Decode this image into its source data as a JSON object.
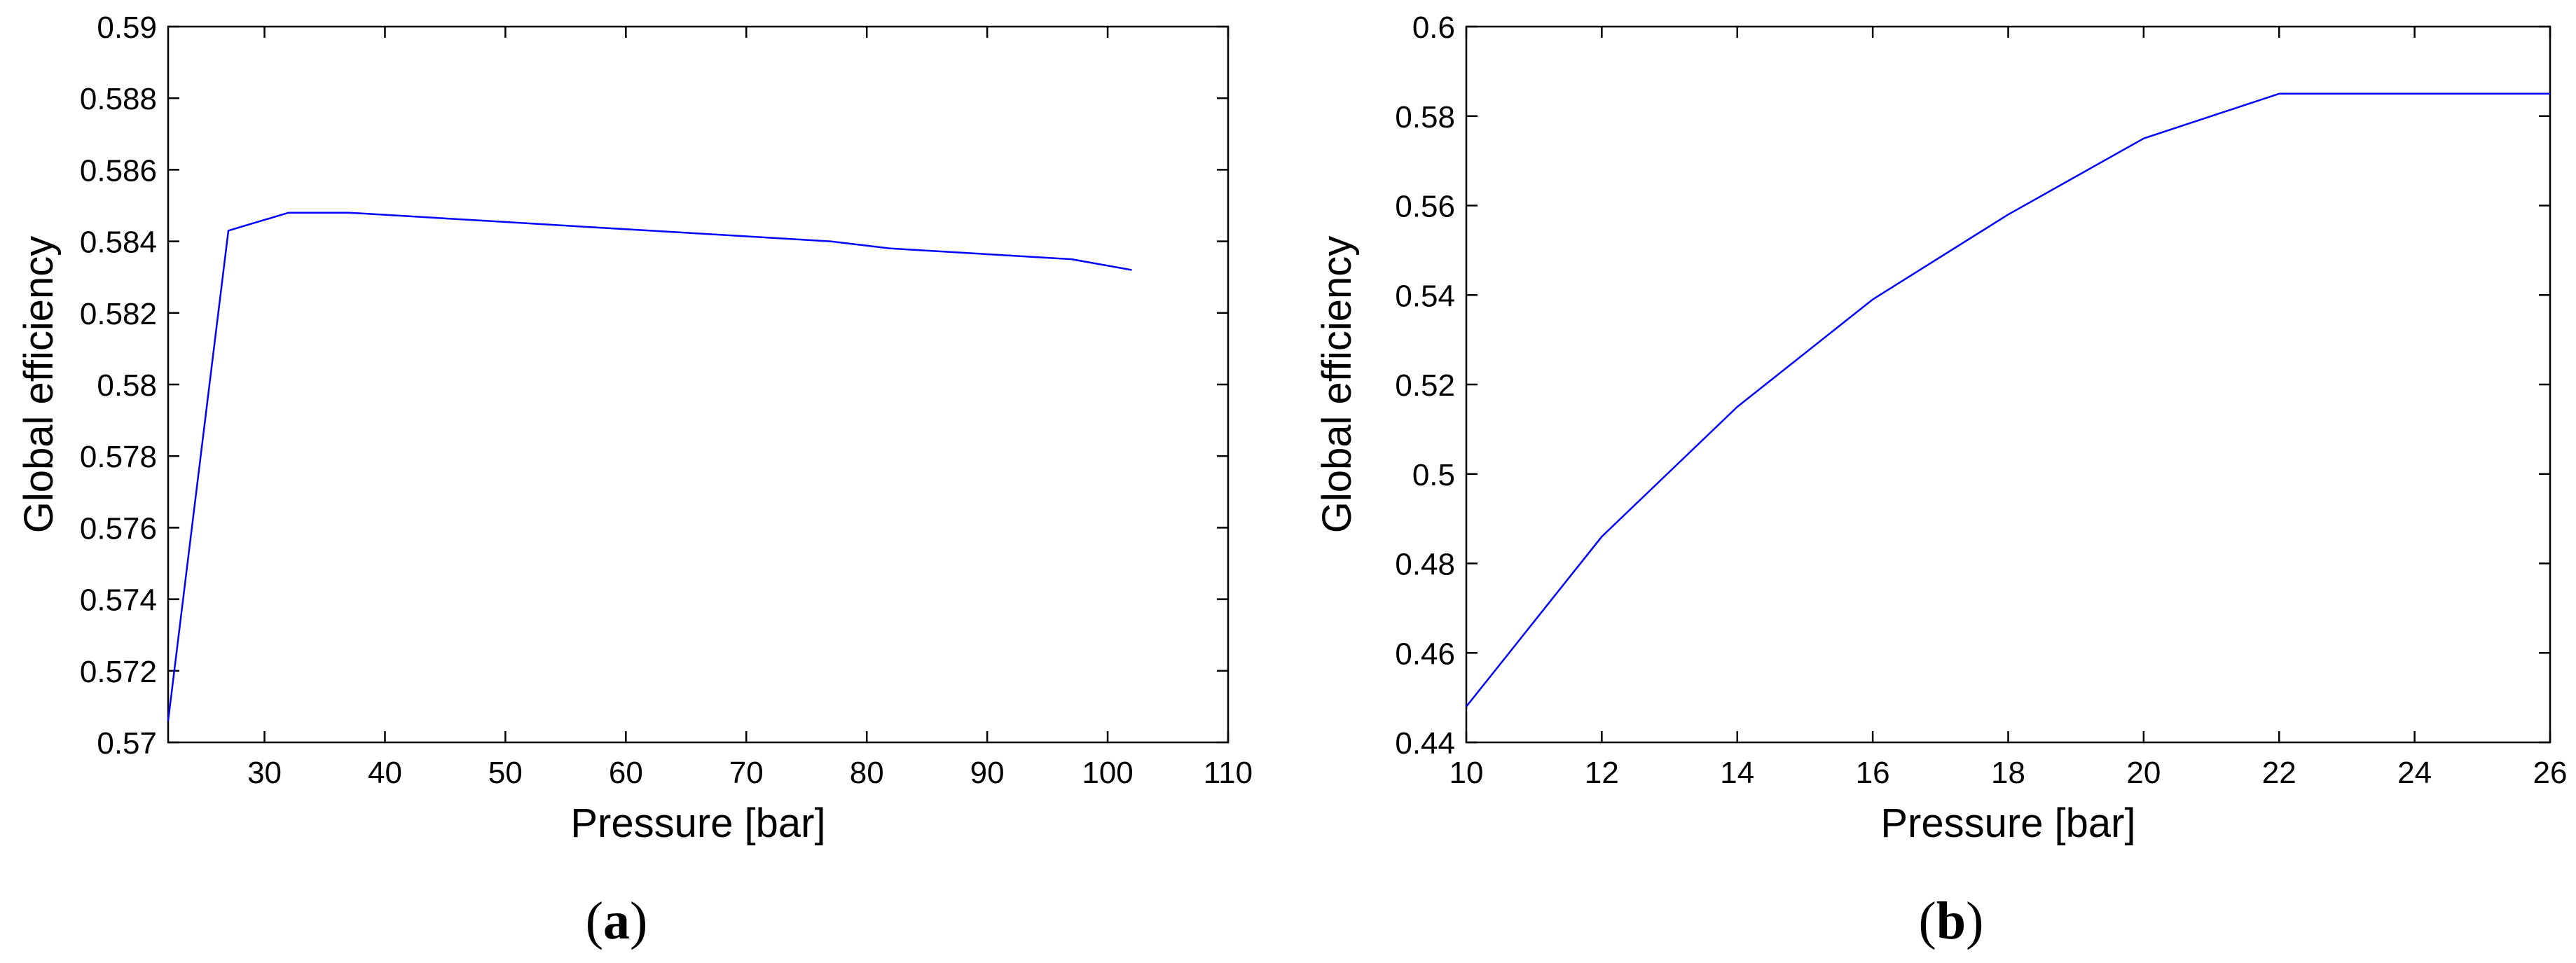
{
  "chart_data": [
    {
      "panel_label": "a",
      "type": "line",
      "xlabel": "Pressure [bar]",
      "ylabel": "Global efficiency",
      "xlim": [
        22,
        110
      ],
      "ylim": [
        0.57,
        0.59
      ],
      "xticks": [
        30,
        40,
        50,
        60,
        70,
        80,
        90,
        100,
        110
      ],
      "yticks": [
        0.57,
        0.572,
        0.574,
        0.576,
        0.578,
        0.58,
        0.582,
        0.584,
        0.586,
        0.588,
        0.59
      ],
      "xtick_labels": [
        "30",
        "40",
        "50",
        "60",
        "70",
        "80",
        "90",
        "100",
        "110"
      ],
      "ytick_labels": [
        "0.57",
        "0.572",
        "0.574",
        "0.576",
        "0.578",
        "0.58",
        "0.582",
        "0.584",
        "0.586",
        "0.588",
        "0.59"
      ],
      "grid": false,
      "line_color": "#0000ff",
      "series": [
        {
          "x": [
            22,
            27,
            32,
            37,
            42,
            47,
            52,
            57,
            62,
            67,
            72,
            77,
            82,
            87,
            92,
            97,
            102
          ],
          "y": [
            0.5706,
            0.5843,
            0.5848,
            0.5848,
            0.5847,
            0.5846,
            0.5845,
            0.5844,
            0.5843,
            0.5842,
            0.5841,
            0.584,
            0.5838,
            0.5837,
            0.5836,
            0.5835,
            0.5832
          ]
        }
      ]
    },
    {
      "panel_label": "b",
      "type": "line",
      "xlabel": "Pressure [bar]",
      "ylabel": "Global efficiency",
      "xlim": [
        10,
        26
      ],
      "ylim": [
        0.44,
        0.6
      ],
      "xticks": [
        10,
        12,
        14,
        16,
        18,
        20,
        22,
        24,
        26
      ],
      "yticks": [
        0.44,
        0.46,
        0.48,
        0.5,
        0.52,
        0.54,
        0.56,
        0.58,
        0.6
      ],
      "xtick_labels": [
        "10",
        "12",
        "14",
        "16",
        "18",
        "20",
        "22",
        "24",
        "26"
      ],
      "ytick_labels": [
        "0.44",
        "0.46",
        "0.48",
        "0.5",
        "0.52",
        "0.54",
        "0.56",
        "0.58",
        "0.6"
      ],
      "grid": false,
      "line_color": "#0000ff",
      "series": [
        {
          "x": [
            10,
            12,
            14,
            16,
            18,
            20,
            22,
            24,
            26
          ],
          "y": [
            0.448,
            0.486,
            0.515,
            0.539,
            0.558,
            0.575,
            0.585,
            0.585,
            0.585
          ]
        }
      ]
    }
  ]
}
